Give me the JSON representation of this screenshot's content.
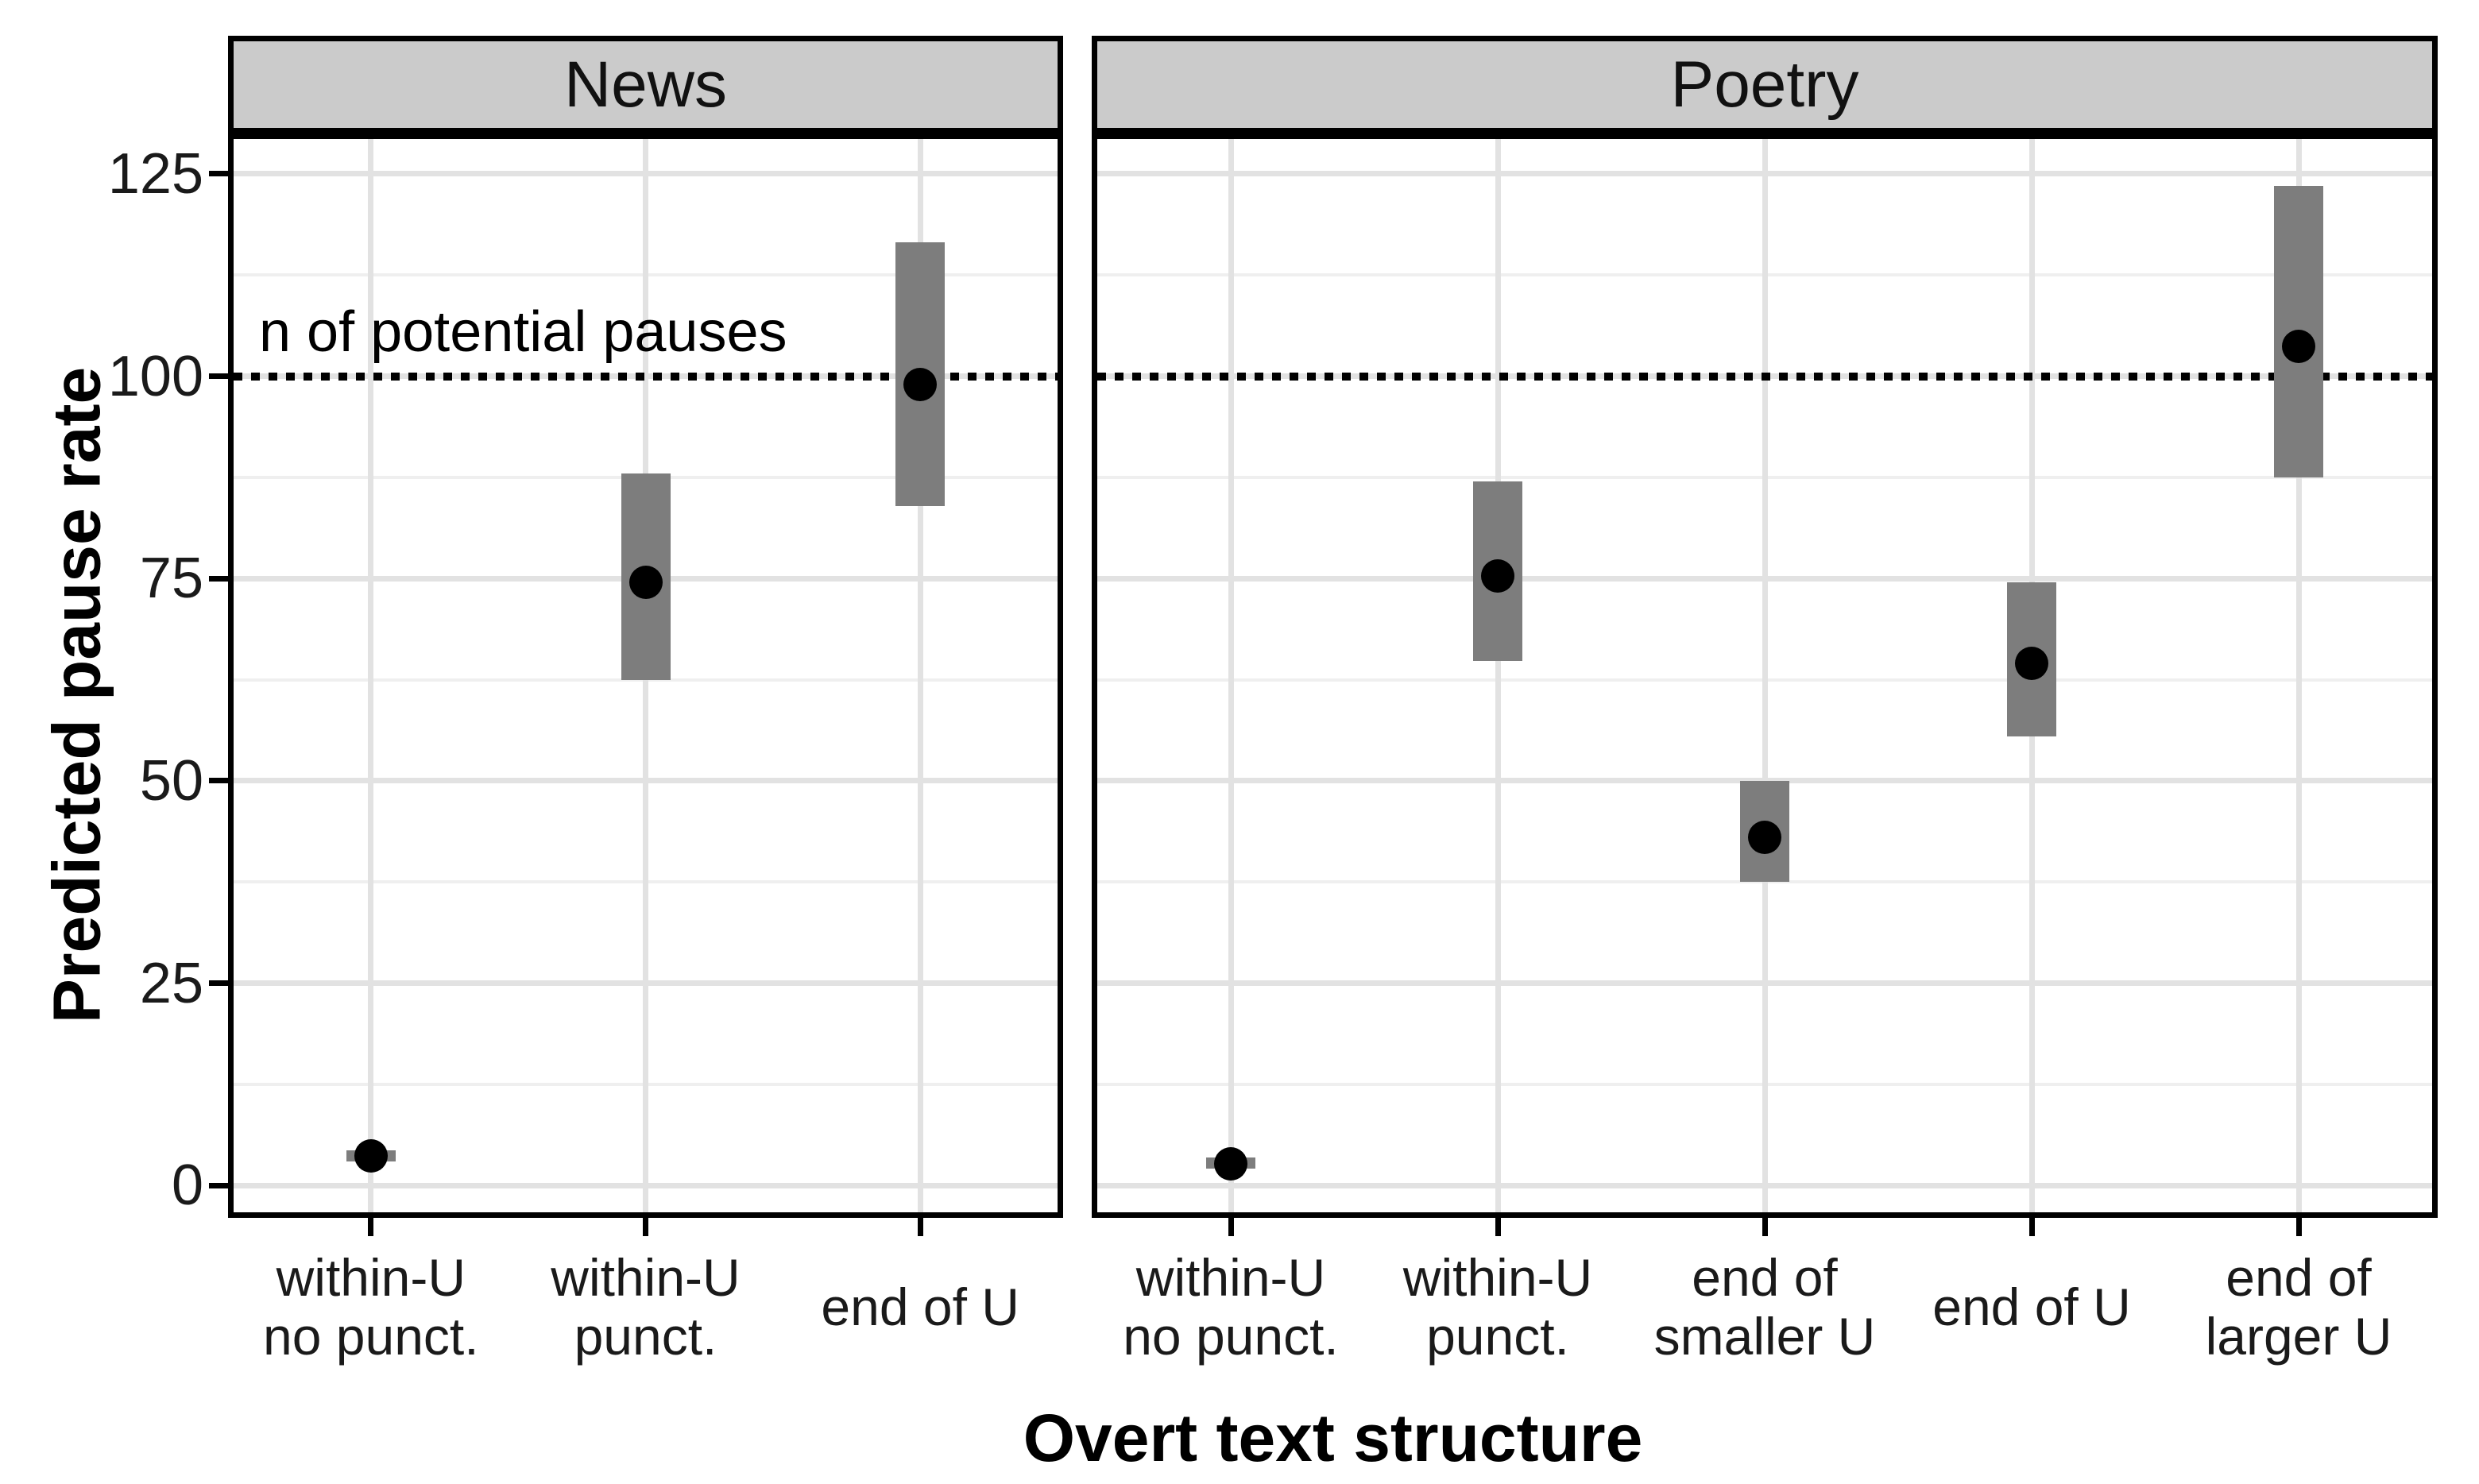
{
  "chart_data": {
    "type": "pointrange",
    "title": "",
    "xlabel": "Overt text structure",
    "ylabel": "Predicted pause rate",
    "ylim": [
      -3.3,
      129.3
    ],
    "yticks": [
      0,
      25,
      50,
      75,
      100,
      125
    ],
    "minor_gridlines": [
      12.5,
      37.5,
      62.5,
      87.5,
      112.5
    ],
    "grid": true,
    "legend": "none",
    "reference_line": {
      "y": 100,
      "style": "dotted",
      "label": "n of potential pauses",
      "label_panel": "News"
    },
    "panels": [
      {
        "label": "News",
        "categories": [
          {
            "lines": [
              "within-U",
              "no punct."
            ]
          },
          {
            "lines": [
              "within-U",
              "punct."
            ]
          },
          {
            "lines": [
              "end of U"
            ]
          }
        ],
        "series": [
          {
            "category": "within-U no punct.",
            "mean": 3.7,
            "lower": 3.0,
            "upper": 4.4
          },
          {
            "category": "within-U punct.",
            "mean": 74.5,
            "lower": 62.5,
            "upper": 88.0
          },
          {
            "category": "end of U",
            "mean": 99.0,
            "lower": 84.0,
            "upper": 116.5
          }
        ]
      },
      {
        "label": "Poetry",
        "categories": [
          {
            "lines": [
              "within-U",
              "no punct."
            ]
          },
          {
            "lines": [
              "within-U",
              "punct."
            ]
          },
          {
            "lines": [
              "end of",
              "smaller U"
            ]
          },
          {
            "lines": [
              "end of U"
            ]
          },
          {
            "lines": [
              "end of",
              "larger U"
            ]
          }
        ],
        "series": [
          {
            "category": "within-U no punct.",
            "mean": 2.7,
            "lower": 2.1,
            "upper": 3.5
          },
          {
            "category": "within-U punct.",
            "mean": 75.3,
            "lower": 64.8,
            "upper": 87.0
          },
          {
            "category": "end of smaller U",
            "mean": 43.0,
            "lower": 37.5,
            "upper": 50.0
          },
          {
            "category": "end of U",
            "mean": 64.5,
            "lower": 55.5,
            "upper": 74.5
          },
          {
            "category": "end of larger U",
            "mean": 103.7,
            "lower": 87.5,
            "upper": 123.5
          }
        ]
      }
    ],
    "colors": {
      "background": "#ffffff",
      "strip_fill": "#cbcbcb",
      "panel_border": "#000000",
      "grid_major": "#e2e2e2",
      "grid_minor": "#efefef",
      "interval_bar": "#7d7d7d",
      "point": "#000000",
      "reference_line": "#000000",
      "axis_text": "#1a1a1a",
      "title_text": "#000000"
    }
  }
}
